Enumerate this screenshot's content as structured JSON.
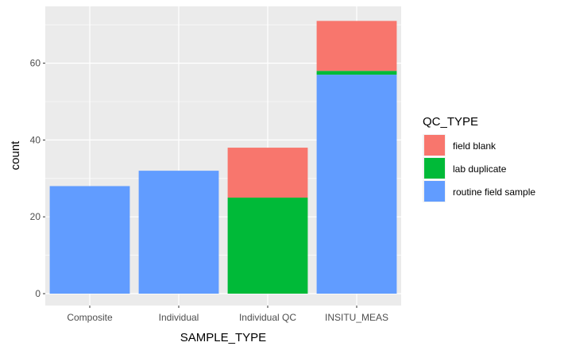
{
  "chart_data": {
    "type": "bar",
    "stacked": true,
    "xlabel": "SAMPLE_TYPE",
    "ylabel": "count",
    "categories": [
      "Composite",
      "Individual",
      "Individual QC",
      "INSITU_MEAS"
    ],
    "ylim": [
      0,
      72
    ],
    "yticks": [
      0,
      20,
      40,
      60
    ],
    "grid": true,
    "legend": {
      "title": "QC_TYPE",
      "placement": "right",
      "entries": [
        {
          "name": "field blank",
          "color": "#F8766D"
        },
        {
          "name": "lab duplicate",
          "color": "#00BA38"
        },
        {
          "name": "routine field sample",
          "color": "#619CFF"
        }
      ]
    },
    "stack_order": [
      "routine field sample",
      "lab duplicate",
      "field blank"
    ],
    "series": [
      {
        "name": "field blank",
        "color": "#F8766D",
        "values": [
          0,
          0,
          13,
          13
        ]
      },
      {
        "name": "lab duplicate",
        "color": "#00BA38",
        "values": [
          0,
          0,
          25,
          1
        ]
      },
      {
        "name": "routine field sample",
        "color": "#619CFF",
        "values": [
          28,
          32,
          0,
          57
        ]
      }
    ],
    "panel_background": "#EBEBEB",
    "grid_color": "#FFFFFF"
  }
}
